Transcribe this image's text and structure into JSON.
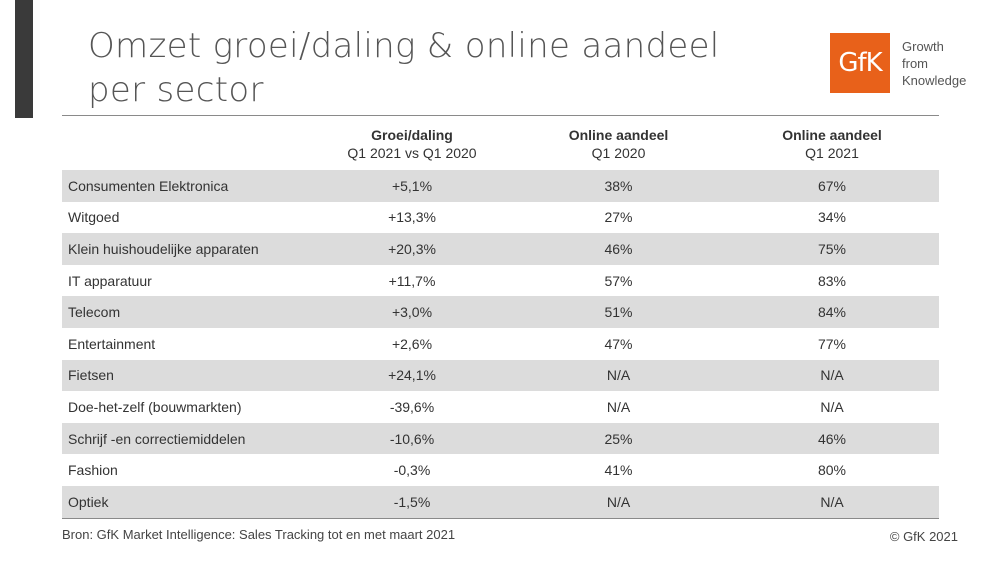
{
  "title": "Omzet groei/daling & online aandeel per sector",
  "logo": {
    "text": "GfK",
    "tagline": [
      "Growth",
      "from",
      "Knowledge"
    ],
    "color": "#e8611a"
  },
  "table": {
    "headers": [
      {
        "bold": "",
        "sub": ""
      },
      {
        "bold": "Groei/daling",
        "sub": "Q1 2021 vs Q1 2020"
      },
      {
        "bold": "Online aandeel",
        "sub": "Q1 2020"
      },
      {
        "bold": "Online aandeel",
        "sub": "Q1 2021"
      }
    ],
    "rows": [
      [
        "Consumenten Elektronica",
        "+5,1%",
        "38%",
        "67%"
      ],
      [
        "Witgoed",
        "+13,3%",
        "27%",
        "34%"
      ],
      [
        "Klein huishoudelijke apparaten",
        "+20,3%",
        "46%",
        "75%"
      ],
      [
        "IT apparatuur",
        "+11,7%",
        "57%",
        "83%"
      ],
      [
        "Telecom",
        "+3,0%",
        "51%",
        "84%"
      ],
      [
        "Entertainment",
        "+2,6%",
        "47%",
        "77%"
      ],
      [
        "Fietsen",
        "+24,1%",
        "N/A",
        "N/A"
      ],
      [
        "Doe-het-zelf (bouwmarkten)",
        "-39,6%",
        "N/A",
        "N/A"
      ],
      [
        "Schrijf -en correctiemiddelen",
        "-10,6%",
        "25%",
        "46%"
      ],
      [
        "Fashion",
        "-0,3%",
        "41%",
        "80%"
      ],
      [
        "Optiek",
        "-1,5%",
        "N/A",
        "N/A"
      ]
    ]
  },
  "footer": {
    "source": "Bron: GfK Market Intelligence: Sales Tracking tot en met maart 2021",
    "copyright": "© GfK 2021"
  }
}
